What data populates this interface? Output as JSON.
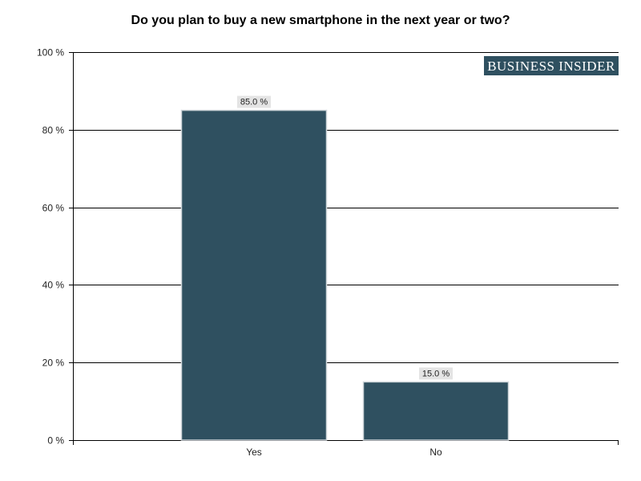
{
  "brand": {
    "logo_text": "Business Insider"
  },
  "colors": {
    "bar": "#2f5060",
    "bar_outline": "#cfd6da",
    "label_bg": "#e4e4e4",
    "brand_bg": "#2f5060",
    "grid": "#000000"
  },
  "chart_data": {
    "type": "bar",
    "title": "Do you plan to buy a new smartphone in the next year or two?",
    "categories": [
      "Yes",
      "No"
    ],
    "values": [
      85.0,
      15.0
    ],
    "data_labels": [
      "85.0 %",
      "15.0 %"
    ],
    "ylim": [
      0,
      100
    ],
    "yticks": [
      0,
      20,
      40,
      60,
      80,
      100
    ],
    "ytick_labels": [
      "0 %",
      "20 %",
      "40 %",
      "60 %",
      "80 %",
      "100 %"
    ],
    "xlabel": "",
    "ylabel": "",
    "grid": true,
    "legend": false
  }
}
